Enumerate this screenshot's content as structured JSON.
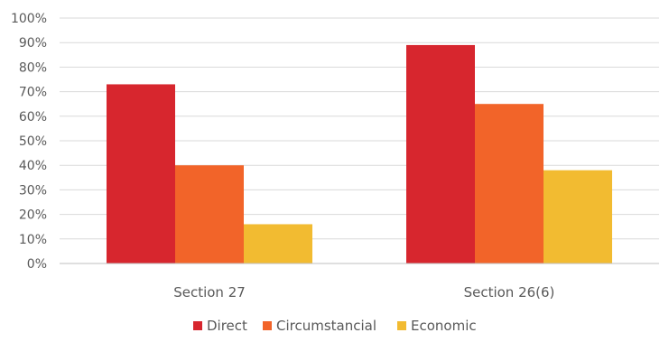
{
  "chart_data": {
    "type": "bar",
    "title": "",
    "xlabel": "",
    "ylabel": "",
    "categories": [
      "Section 27",
      "Section 26(6)"
    ],
    "series": [
      {
        "name": "Direct",
        "color": "#d7262e",
        "values": [
          73,
          89
        ]
      },
      {
        "name": "Circumstancial",
        "color": "#f26429",
        "values": [
          40,
          65
        ]
      },
      {
        "name": "Economic",
        "color": "#f2bb31",
        "values": [
          16,
          38
        ]
      }
    ],
    "ylim": [
      0,
      100
    ],
    "yticks": [
      "0%",
      "10%",
      "20%",
      "30%",
      "40%",
      "50%",
      "60%",
      "70%",
      "80%",
      "90%",
      "100%"
    ],
    "grid": true,
    "gridline_color": "#d9d9d9",
    "legend_position": "bottom"
  }
}
